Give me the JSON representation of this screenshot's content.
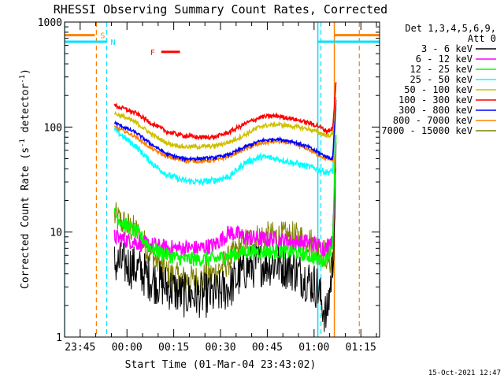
{
  "chart_data": {
    "type": "line",
    "title": "RHESSI Observing Summary Count Rates, Corrected",
    "xlabel": "Start Time (01-Mar-04 23:43:02)",
    "ylabel": "Corrected Count Rate (s^-1 detector^-1)",
    "ylabel_main": "Corrected Count Rate (s",
    "ylabel_sup1": "-1",
    "ylabel_mid": " detector",
    "ylabel_sup2": "-1",
    "ylabel_end": ")",
    "yscale": "log",
    "ylim": [
      1,
      1000
    ],
    "xlim_minutes_from_2343": [
      -3,
      98
    ],
    "x_ticks": [
      {
        "label": "23:45",
        "t": 2
      },
      {
        "label": "00:00",
        "t": 17
      },
      {
        "label": "00:15",
        "t": 32
      },
      {
        "label": "00:30",
        "t": 47
      },
      {
        "label": "00:45",
        "t": 62
      },
      {
        "label": "01:00",
        "t": 77
      },
      {
        "label": "01:15",
        "t": 92
      }
    ],
    "y_ticks": [
      {
        "label": "1",
        "v": 1
      },
      {
        "label": "10",
        "v": 10
      },
      {
        "label": "100",
        "v": 100
      },
      {
        "label": "1000",
        "v": 1000
      }
    ],
    "legend": {
      "placement": "right",
      "header1": "Det 1,3,4,5,6,9,",
      "header2": "Att 0"
    },
    "x": [
      13,
      16,
      20,
      25,
      30,
      35,
      40,
      45,
      50,
      55,
      60,
      65,
      70,
      75,
      78,
      81,
      83,
      84
    ],
    "series": [
      {
        "name": "3 - 6 keV",
        "color": "#000000",
        "noise": 0.22,
        "values": [
          5,
          5,
          4.5,
          3.5,
          3,
          2.5,
          2.5,
          2.5,
          3,
          4.5,
          5,
          5,
          4.5,
          3.5,
          3,
          1.5,
          5,
          30
        ]
      },
      {
        "name": "6 - 12 keV",
        "color": "#ff00ff",
        "noise": 0.08,
        "values": [
          9,
          8.5,
          8,
          7.5,
          7,
          7,
          7,
          7.5,
          10,
          9,
          8.5,
          8.5,
          8,
          8,
          7.5,
          7,
          9,
          60
        ]
      },
      {
        "name": "12 - 25 keV",
        "color": "#00ff00",
        "noise": 0.07,
        "values": [
          15,
          12,
          10,
          7,
          6,
          5.5,
          5.5,
          5.5,
          6,
          6.5,
          6.5,
          6.5,
          6.5,
          6,
          5.5,
          5.5,
          8,
          80
        ]
      },
      {
        "name": "25 - 50 keV",
        "color": "#00ffff",
        "noise": 0.03,
        "values": [
          95,
          80,
          65,
          45,
          35,
          31,
          30,
          31,
          34,
          46,
          52,
          50,
          46,
          42,
          40,
          37,
          38,
          150
        ]
      },
      {
        "name": "50 - 100 keV",
        "color": "#d0c000",
        "noise": 0.02,
        "values": [
          135,
          125,
          110,
          85,
          70,
          65,
          65,
          66,
          72,
          85,
          102,
          106,
          102,
          96,
          90,
          83,
          85,
          200
        ]
      },
      {
        "name": "100 - 300 keV",
        "color": "#ff0000",
        "noise": 0.02,
        "values": [
          160,
          150,
          135,
          108,
          90,
          83,
          80,
          80,
          90,
          108,
          125,
          128,
          120,
          110,
          103,
          92,
          96,
          260
        ]
      },
      {
        "name": "300 - 800 keV",
        "color": "#0000ff",
        "noise": 0.015,
        "values": [
          110,
          100,
          88,
          68,
          55,
          50,
          50,
          51,
          55,
          65,
          74,
          77,
          73,
          65,
          58,
          52,
          50,
          180
        ]
      },
      {
        "name": "800 - 7000 keV",
        "color": "#ff8000",
        "noise": 0.015,
        "values": [
          100,
          92,
          80,
          62,
          52,
          48,
          47,
          48,
          53,
          62,
          70,
          73,
          70,
          62,
          55,
          50,
          48,
          170
        ]
      },
      {
        "name": "7000 - 15000 keV",
        "color": "#808000",
        "noise": 0.15,
        "values": [
          14,
          12,
          10,
          6,
          4,
          3.5,
          3.5,
          4,
          5.5,
          8,
          9,
          9,
          9,
          8.5,
          7,
          6,
          5,
          40
        ]
      }
    ],
    "annotations": {
      "orange_bar_level": 750,
      "cyan_bar_level": 650,
      "flag_S_label": "S",
      "flag_N_label": "N",
      "flag_F_label": "F",
      "flag_F_level": 520,
      "flag_F_range": [
        28,
        34
      ],
      "orange_dashed_t": [
        7.2,
        91.5
      ],
      "cyan_dashed_t": [
        10.5,
        79.2
      ],
      "orange_solid_t": [
        83.5
      ],
      "cyan_solid_t": [
        -3,
        78.2
      ],
      "colors": {
        "orange": "#ff8000",
        "cyan": "#00e0ff",
        "red": "#ff0000"
      }
    },
    "timestamp": "15-Oct-2021 12:47"
  }
}
